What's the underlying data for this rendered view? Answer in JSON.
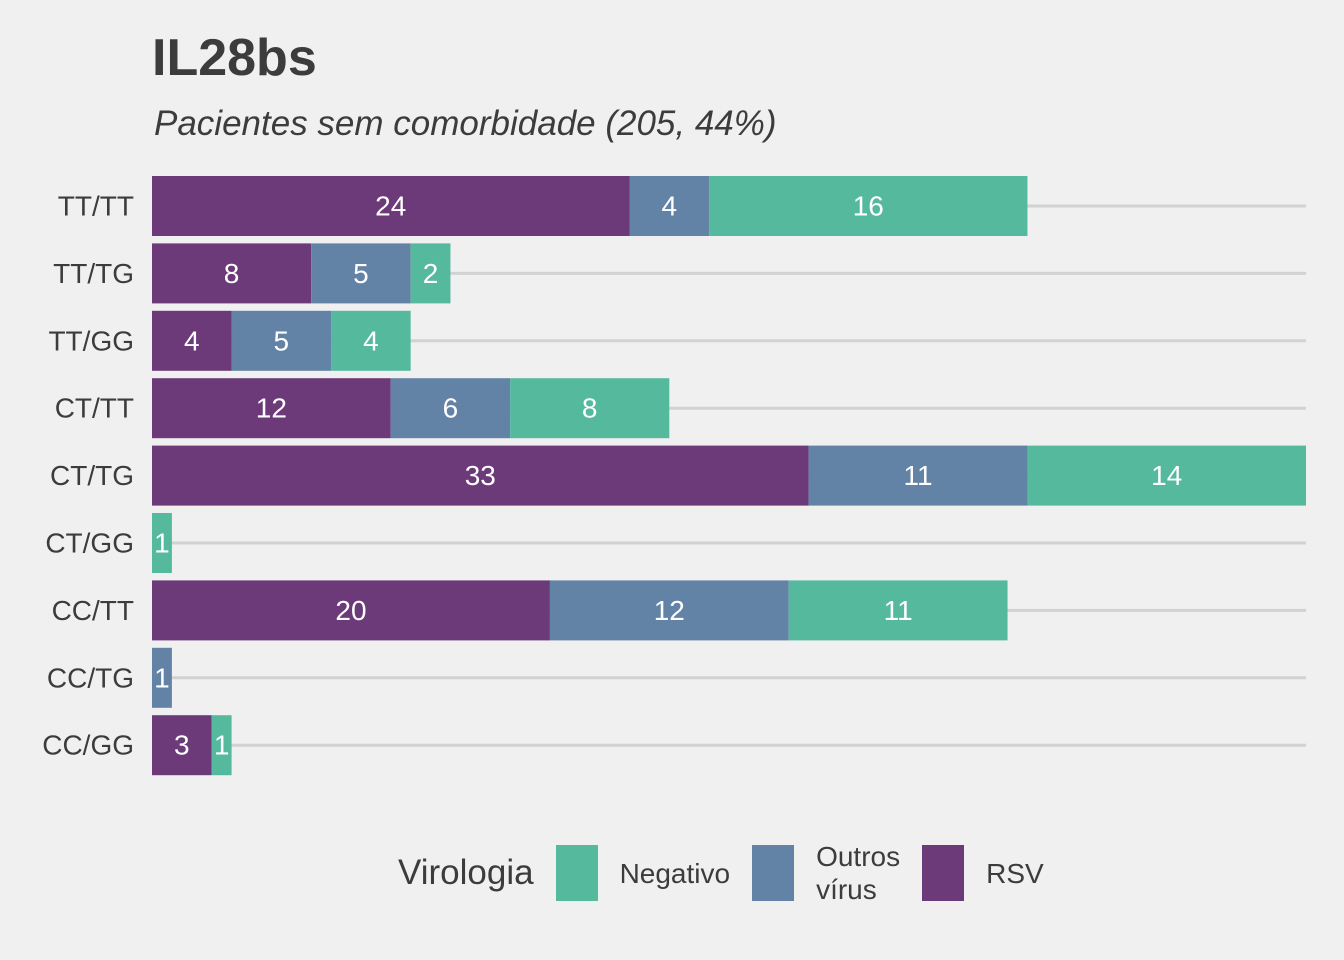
{
  "chart_data": {
    "type": "bar",
    "orientation": "horizontal",
    "stacked": true,
    "title": "IL28bs",
    "subtitle": "Pacientes sem comorbidade (205, 44%)",
    "xlabel": "",
    "ylabel": "",
    "xlim": [
      0,
      58
    ],
    "grid": true,
    "legend_position": "bottom",
    "legend_title": "Virologia",
    "categories": [
      "TT/TT",
      "TT/TG",
      "TT/GG",
      "CT/TT",
      "CT/TG",
      "CT/GG",
      "CC/TT",
      "CC/TG",
      "CC/GG"
    ],
    "series": [
      {
        "name": "RSV",
        "color": "#6c3a79",
        "values": [
          24,
          8,
          4,
          12,
          33,
          0,
          20,
          0,
          3
        ]
      },
      {
        "name": "Outros vírus",
        "color": "#6283a6",
        "values": [
          4,
          5,
          5,
          6,
          11,
          0,
          12,
          1,
          0
        ]
      },
      {
        "name": "Negativo",
        "color": "#55b99d",
        "values": [
          16,
          2,
          4,
          8,
          14,
          1,
          11,
          0,
          1
        ]
      }
    ],
    "legend": [
      {
        "label": "Negativo",
        "color": "#55b99d"
      },
      {
        "label": "Outros\nvírus",
        "color": "#6283a6"
      },
      {
        "label": "RSV",
        "color": "#6c3a79"
      }
    ]
  }
}
